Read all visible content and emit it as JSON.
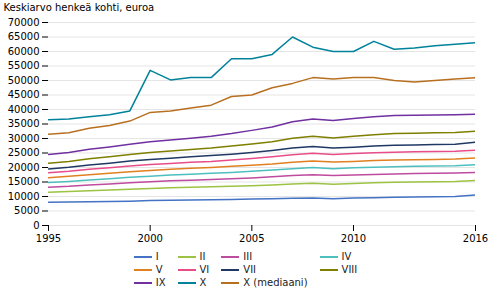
{
  "chart_data": {
    "type": "line",
    "x": [
      1995,
      1996,
      1997,
      1998,
      1999,
      2000,
      2001,
      2002,
      2003,
      2004,
      2005,
      2006,
      2007,
      2008,
      2009,
      2010,
      2011,
      2012,
      2013,
      2014,
      2015,
      2016
    ],
    "series": [
      {
        "name": "I",
        "color": "#4472c4",
        "values": [
          8000,
          8100,
          8200,
          8300,
          8400,
          8600,
          8700,
          8800,
          8900,
          9000,
          9100,
          9200,
          9400,
          9500,
          9200,
          9500,
          9600,
          9700,
          9800,
          9900,
          10000,
          10500
        ]
      },
      {
        "name": "II",
        "color": "#9dc343",
        "values": [
          11500,
          11700,
          12000,
          12200,
          12500,
          12800,
          13000,
          13200,
          13400,
          13500,
          13700,
          14000,
          14300,
          14600,
          14200,
          14500,
          14700,
          14900,
          15000,
          15100,
          15200,
          15500
        ]
      },
      {
        "name": "III",
        "color": "#be4b9e",
        "values": [
          13200,
          13500,
          14000,
          14300,
          14700,
          15100,
          15400,
          15600,
          15900,
          16100,
          16400,
          16800,
          17200,
          17500,
          17200,
          17400,
          17600,
          17800,
          17900,
          18000,
          18100,
          18300
        ]
      },
      {
        "name": "IV",
        "color": "#4ebfbf",
        "values": [
          14800,
          15200,
          15700,
          16100,
          16600,
          17000,
          17400,
          17700,
          18000,
          18300,
          18700,
          19100,
          19600,
          20000,
          19600,
          19900,
          20100,
          20300,
          20400,
          20500,
          20600,
          21000
        ]
      },
      {
        "name": "V",
        "color": "#e08020",
        "values": [
          16500,
          17000,
          17500,
          18000,
          18500,
          19000,
          19400,
          19700,
          20000,
          20400,
          20800,
          21200,
          21800,
          22200,
          21900,
          22100,
          22400,
          22600,
          22700,
          22800,
          22900,
          23300
        ]
      },
      {
        "name": "VI",
        "color": "#e84d8a",
        "values": [
          18200,
          18700,
          19400,
          19900,
          20500,
          21000,
          21400,
          21800,
          22100,
          22600,
          23100,
          23700,
          24400,
          24900,
          24500,
          24800,
          25100,
          25300,
          25400,
          25500,
          25600,
          26000
        ]
      },
      {
        "name": "VII",
        "color": "#203864",
        "values": [
          19500,
          20100,
          20900,
          21500,
          22200,
          22800,
          23200,
          23700,
          24100,
          24600,
          25200,
          25900,
          26700,
          27200,
          26700,
          27000,
          27400,
          27700,
          27800,
          27900,
          28000,
          28700
        ]
      },
      {
        "name": "VIII",
        "color": "#7f7f00",
        "values": [
          21500,
          22100,
          23000,
          23700,
          24500,
          25200,
          25700,
          26200,
          26700,
          27400,
          28100,
          28900,
          30100,
          30800,
          30200,
          30800,
          31300,
          31700,
          31800,
          32000,
          32100,
          32500
        ]
      },
      {
        "name": "IX",
        "color": "#7030a0",
        "values": [
          24500,
          25200,
          26300,
          27100,
          28000,
          28900,
          29500,
          30100,
          30800,
          31700,
          32800,
          34000,
          35800,
          36700,
          36200,
          36900,
          37500,
          37900,
          38000,
          38100,
          38200,
          38400
        ]
      },
      {
        "name": "X",
        "color": "#00829a",
        "values": [
          36500,
          36700,
          37500,
          38200,
          39500,
          53500,
          50200,
          51000,
          51000,
          57500,
          57500,
          59000,
          65000,
          61500,
          60000,
          60000,
          63500,
          60800,
          61200,
          62000,
          62500,
          63000
        ]
      },
      {
        "name": "X (mediaani)",
        "color": "#b87020",
        "values": [
          31500,
          32000,
          33500,
          34500,
          36000,
          39000,
          39500,
          40500,
          41500,
          44500,
          45000,
          47500,
          49000,
          51000,
          50500,
          51000,
          51000,
          50000,
          49500,
          50000,
          50500,
          51000
        ]
      }
    ],
    "ylabel": "Keskiarvo henkeä kohti, euroa",
    "xlim": [
      1995,
      2016
    ],
    "xticks": [
      1995,
      2000,
      2005,
      2010,
      2016
    ],
    "ylim": [
      0,
      70000
    ],
    "yticks": [
      0,
      5000,
      10000,
      15000,
      20000,
      25000,
      30000,
      35000,
      40000,
      45000,
      50000,
      55000,
      60000,
      65000,
      70000
    ],
    "grid": true,
    "legend": "bottom"
  }
}
